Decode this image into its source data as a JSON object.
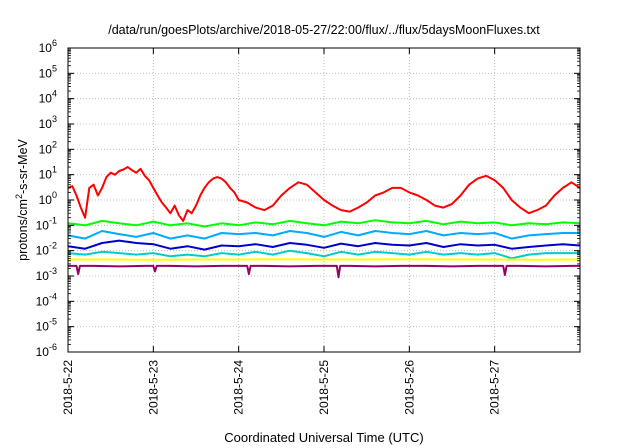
{
  "chart_data": {
    "type": "line",
    "title": "/data/run/goesPlots/archive/2018-05-27/22:00/flux/../flux/5daysMoonFluxes.txt",
    "xlabel": "Coordinated Universal Time (UTC)",
    "ylabel_parts": [
      "protons/cm",
      "2",
      "-s-sr-MeV"
    ],
    "y_scale": "log",
    "ylim_exp": [
      -6,
      6
    ],
    "y_tick_base": "10",
    "y_tick_exponents": [
      "-6",
      "-5",
      "-4",
      "-3",
      "-2",
      "-1",
      "0",
      "1",
      "2",
      "3",
      "4",
      "5",
      "6"
    ],
    "xlim_days": [
      0,
      6
    ],
    "x_tick_labels": [
      "2018-5-22",
      "2018-5-23",
      "2018-5-24",
      "2018-5-25",
      "2018-5-26",
      "2018-5-27"
    ],
    "x_tick_days": [
      0,
      1,
      2,
      3,
      4,
      5
    ],
    "grid": true,
    "series": [
      {
        "color": "#ff0000",
        "x": [
          0,
          0.05,
          0.1,
          0.15,
          0.2,
          0.25,
          0.3,
          0.35,
          0.4,
          0.45,
          0.5,
          0.55,
          0.6,
          0.65,
          0.7,
          0.75,
          0.8,
          0.85,
          0.9,
          0.95,
          1.0,
          1.05,
          1.1,
          1.15,
          1.2,
          1.25,
          1.3,
          1.35,
          1.4,
          1.45,
          1.5,
          1.55,
          1.6,
          1.65,
          1.7,
          1.75,
          1.8,
          1.85,
          1.9,
          1.95,
          2.0,
          2.1,
          2.2,
          2.3,
          2.4,
          2.5,
          2.6,
          2.7,
          2.8,
          2.9,
          3.0,
          3.1,
          3.2,
          3.3,
          3.4,
          3.5,
          3.6,
          3.7,
          3.8,
          3.9,
          4.0,
          4.1,
          4.2,
          4.3,
          4.4,
          4.5,
          4.6,
          4.7,
          4.8,
          4.9,
          5.0,
          5.1,
          5.2,
          5.3,
          5.4,
          5.5,
          5.6,
          5.7,
          5.8,
          5.9,
          6.0
        ],
        "y": [
          3,
          3.5,
          1.5,
          0.5,
          0.2,
          3,
          4,
          1.5,
          3,
          8,
          12,
          10,
          14,
          16,
          20,
          15,
          12,
          17,
          9,
          6,
          3,
          1.5,
          0.8,
          0.5,
          0.3,
          0.6,
          0.25,
          0.15,
          0.4,
          0.3,
          0.6,
          1.5,
          3,
          5,
          7,
          8,
          7,
          5,
          3,
          2,
          1,
          0.8,
          0.5,
          0.4,
          0.6,
          1.5,
          3,
          5,
          4,
          2,
          1,
          0.6,
          0.4,
          0.35,
          0.5,
          0.8,
          1.5,
          2,
          3,
          3,
          2,
          1.5,
          1,
          0.6,
          0.5,
          0.7,
          1.5,
          4,
          7,
          9,
          6,
          3,
          1,
          0.5,
          0.3,
          0.4,
          0.6,
          1.5,
          3,
          5,
          3
        ]
      },
      {
        "color": "#00ff00",
        "x": [
          0,
          0.2,
          0.4,
          0.6,
          0.8,
          1.0,
          1.2,
          1.4,
          1.6,
          1.8,
          2.0,
          2.2,
          2.4,
          2.6,
          2.8,
          3.0,
          3.2,
          3.4,
          3.6,
          3.8,
          4.0,
          4.2,
          4.4,
          4.6,
          4.8,
          5.0,
          5.2,
          5.4,
          5.6,
          5.8,
          6.0
        ],
        "y": [
          0.12,
          0.1,
          0.15,
          0.12,
          0.1,
          0.14,
          0.1,
          0.12,
          0.09,
          0.12,
          0.1,
          0.13,
          0.11,
          0.15,
          0.12,
          0.1,
          0.14,
          0.12,
          0.16,
          0.13,
          0.12,
          0.15,
          0.11,
          0.14,
          0.12,
          0.13,
          0.1,
          0.12,
          0.11,
          0.13,
          0.12
        ]
      },
      {
        "color": "#00aaff",
        "x": [
          0,
          0.2,
          0.4,
          0.6,
          0.8,
          1.0,
          1.2,
          1.4,
          1.6,
          1.8,
          2.0,
          2.2,
          2.4,
          2.6,
          2.8,
          3.0,
          3.2,
          3.4,
          3.6,
          3.8,
          4.0,
          4.2,
          4.4,
          4.6,
          4.8,
          5.0,
          5.2,
          5.4,
          5.6,
          5.8,
          6.0
        ],
        "y": [
          0.04,
          0.03,
          0.06,
          0.045,
          0.035,
          0.05,
          0.03,
          0.04,
          0.03,
          0.05,
          0.045,
          0.05,
          0.04,
          0.06,
          0.05,
          0.035,
          0.055,
          0.04,
          0.06,
          0.05,
          0.045,
          0.06,
          0.04,
          0.05,
          0.045,
          0.05,
          0.03,
          0.04,
          0.045,
          0.05,
          0.05
        ]
      },
      {
        "color": "#0000cc",
        "x": [
          0,
          0.2,
          0.4,
          0.6,
          0.8,
          1.0,
          1.2,
          1.4,
          1.6,
          1.8,
          2.0,
          2.2,
          2.4,
          2.6,
          2.8,
          3.0,
          3.2,
          3.4,
          3.6,
          3.8,
          4.0,
          4.2,
          4.4,
          4.6,
          4.8,
          5.0,
          5.2,
          5.4,
          5.6,
          5.8,
          6.0
        ],
        "y": [
          0.015,
          0.012,
          0.02,
          0.025,
          0.02,
          0.018,
          0.012,
          0.015,
          0.011,
          0.016,
          0.015,
          0.018,
          0.014,
          0.02,
          0.017,
          0.013,
          0.019,
          0.015,
          0.02,
          0.017,
          0.016,
          0.02,
          0.014,
          0.018,
          0.016,
          0.017,
          0.012,
          0.014,
          0.016,
          0.018,
          0.016
        ]
      },
      {
        "color": "#00cccc",
        "x": [
          0,
          0.2,
          0.4,
          0.6,
          0.8,
          1.0,
          1.2,
          1.4,
          1.6,
          1.8,
          2.0,
          2.2,
          2.4,
          2.6,
          2.8,
          3.0,
          3.2,
          3.4,
          3.6,
          3.8,
          4.0,
          4.2,
          4.4,
          4.6,
          4.8,
          5.0,
          5.2,
          5.4,
          5.6,
          5.8,
          6.0
        ],
        "y": [
          0.008,
          0.007,
          0.009,
          0.008,
          0.007,
          0.008,
          0.006,
          0.007,
          0.006,
          0.008,
          0.007,
          0.009,
          0.007,
          0.01,
          0.008,
          0.006,
          0.009,
          0.007,
          0.009,
          0.008,
          0.007,
          0.009,
          0.007,
          0.008,
          0.007,
          0.008,
          0.005,
          0.007,
          0.008,
          0.008,
          0.008
        ]
      },
      {
        "color": "#ffff00",
        "x": [
          0,
          0.5,
          1.0,
          1.5,
          2.0,
          2.5,
          3.0,
          3.5,
          4.0,
          4.5,
          5.0,
          5.5,
          6.0
        ],
        "y": [
          0.0045,
          0.0045,
          0.0044,
          0.0045,
          0.0045,
          0.0046,
          0.0045,
          0.0045,
          0.0046,
          0.0045,
          0.0045,
          0.0044,
          0.0045
        ]
      },
      {
        "color": "#990066",
        "x": [
          0,
          0.1,
          0.12,
          0.14,
          0.3,
          0.6,
          0.9,
          1.0,
          1.02,
          1.04,
          1.2,
          1.5,
          1.8,
          2.0,
          2.1,
          2.12,
          2.14,
          2.3,
          2.6,
          2.9,
          3.0,
          3.15,
          3.17,
          3.19,
          3.3,
          3.6,
          3.9,
          4.0,
          4.2,
          4.5,
          4.8,
          5.0,
          5.1,
          5.12,
          5.14,
          5.3,
          5.6,
          5.9,
          6.0
        ],
        "y": [
          0.0025,
          0.0025,
          0.0012,
          0.0025,
          0.0025,
          0.0024,
          0.0025,
          0.0025,
          0.0015,
          0.0025,
          0.0025,
          0.0024,
          0.0025,
          0.0025,
          0.0025,
          0.0012,
          0.0025,
          0.0025,
          0.0024,
          0.0025,
          0.0025,
          0.0025,
          0.0009,
          0.0025,
          0.0025,
          0.0024,
          0.0025,
          0.0025,
          0.0025,
          0.0024,
          0.0025,
          0.0025,
          0.0025,
          0.0011,
          0.0025,
          0.0025,
          0.0024,
          0.0025,
          0.0025
        ]
      }
    ]
  }
}
